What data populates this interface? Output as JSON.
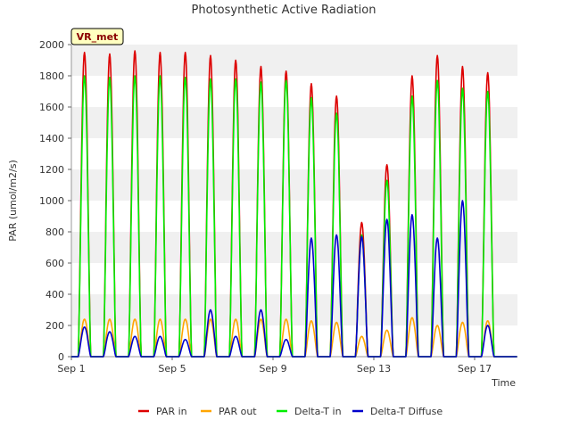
{
  "chart_data": {
    "type": "line",
    "title": "Photosynthetic Active Radiation",
    "xlabel": "Time",
    "ylabel": "PAR (umol/m2/s)",
    "site_tag": "VR_met",
    "x_range_days": [
      0,
      17.7
    ],
    "ylim": [
      0,
      2000
    ],
    "y_ticks": [
      0,
      200,
      400,
      600,
      800,
      1000,
      1200,
      1400,
      1600,
      1800,
      2000
    ],
    "x_ticks": [
      {
        "day": 0,
        "label": "Sep 1"
      },
      {
        "day": 4,
        "label": "Sep 5"
      },
      {
        "day": 8,
        "label": "Sep 9"
      },
      {
        "day": 12,
        "label": "Sep 13"
      },
      {
        "day": 16,
        "label": "Sep 17"
      }
    ],
    "grid": "horizontal bands",
    "legend_position": "bottom",
    "days": [
      "Sep 1",
      "Sep 2",
      "Sep 3",
      "Sep 4",
      "Sep 5",
      "Sep 6",
      "Sep 7",
      "Sep 8",
      "Sep 9",
      "Sep 10",
      "Sep 11",
      "Sep 12",
      "Sep 13",
      "Sep 14",
      "Sep 15",
      "Sep 16",
      "Sep 17",
      "Sep 18"
    ],
    "series": [
      {
        "name": "PAR in",
        "color": "#dd0000",
        "daily_peak": [
          1950,
          1940,
          1960,
          1950,
          1950,
          1930,
          1900,
          1860,
          1830,
          1750,
          1670,
          860,
          1230,
          1800,
          1930,
          1860,
          1820,
          0
        ]
      },
      {
        "name": "PAR out",
        "color": "#ffa500",
        "daily_peak": [
          240,
          240,
          240,
          240,
          240,
          240,
          240,
          240,
          240,
          230,
          220,
          130,
          170,
          250,
          200,
          220,
          230,
          0
        ]
      },
      {
        "name": "Delta-T in",
        "color": "#00ee00",
        "daily_peak": [
          1800,
          1790,
          1800,
          1800,
          1790,
          1780,
          1780,
          1760,
          1770,
          1660,
          1560,
          780,
          1130,
          1670,
          1770,
          1720,
          1700,
          0
        ]
      },
      {
        "name": "Delta-T Diffuse",
        "color": "#0000cc",
        "daily_peak": [
          190,
          160,
          130,
          130,
          110,
          300,
          130,
          300,
          110,
          760,
          780,
          770,
          880,
          910,
          760,
          1000,
          200,
          0
        ]
      }
    ]
  }
}
